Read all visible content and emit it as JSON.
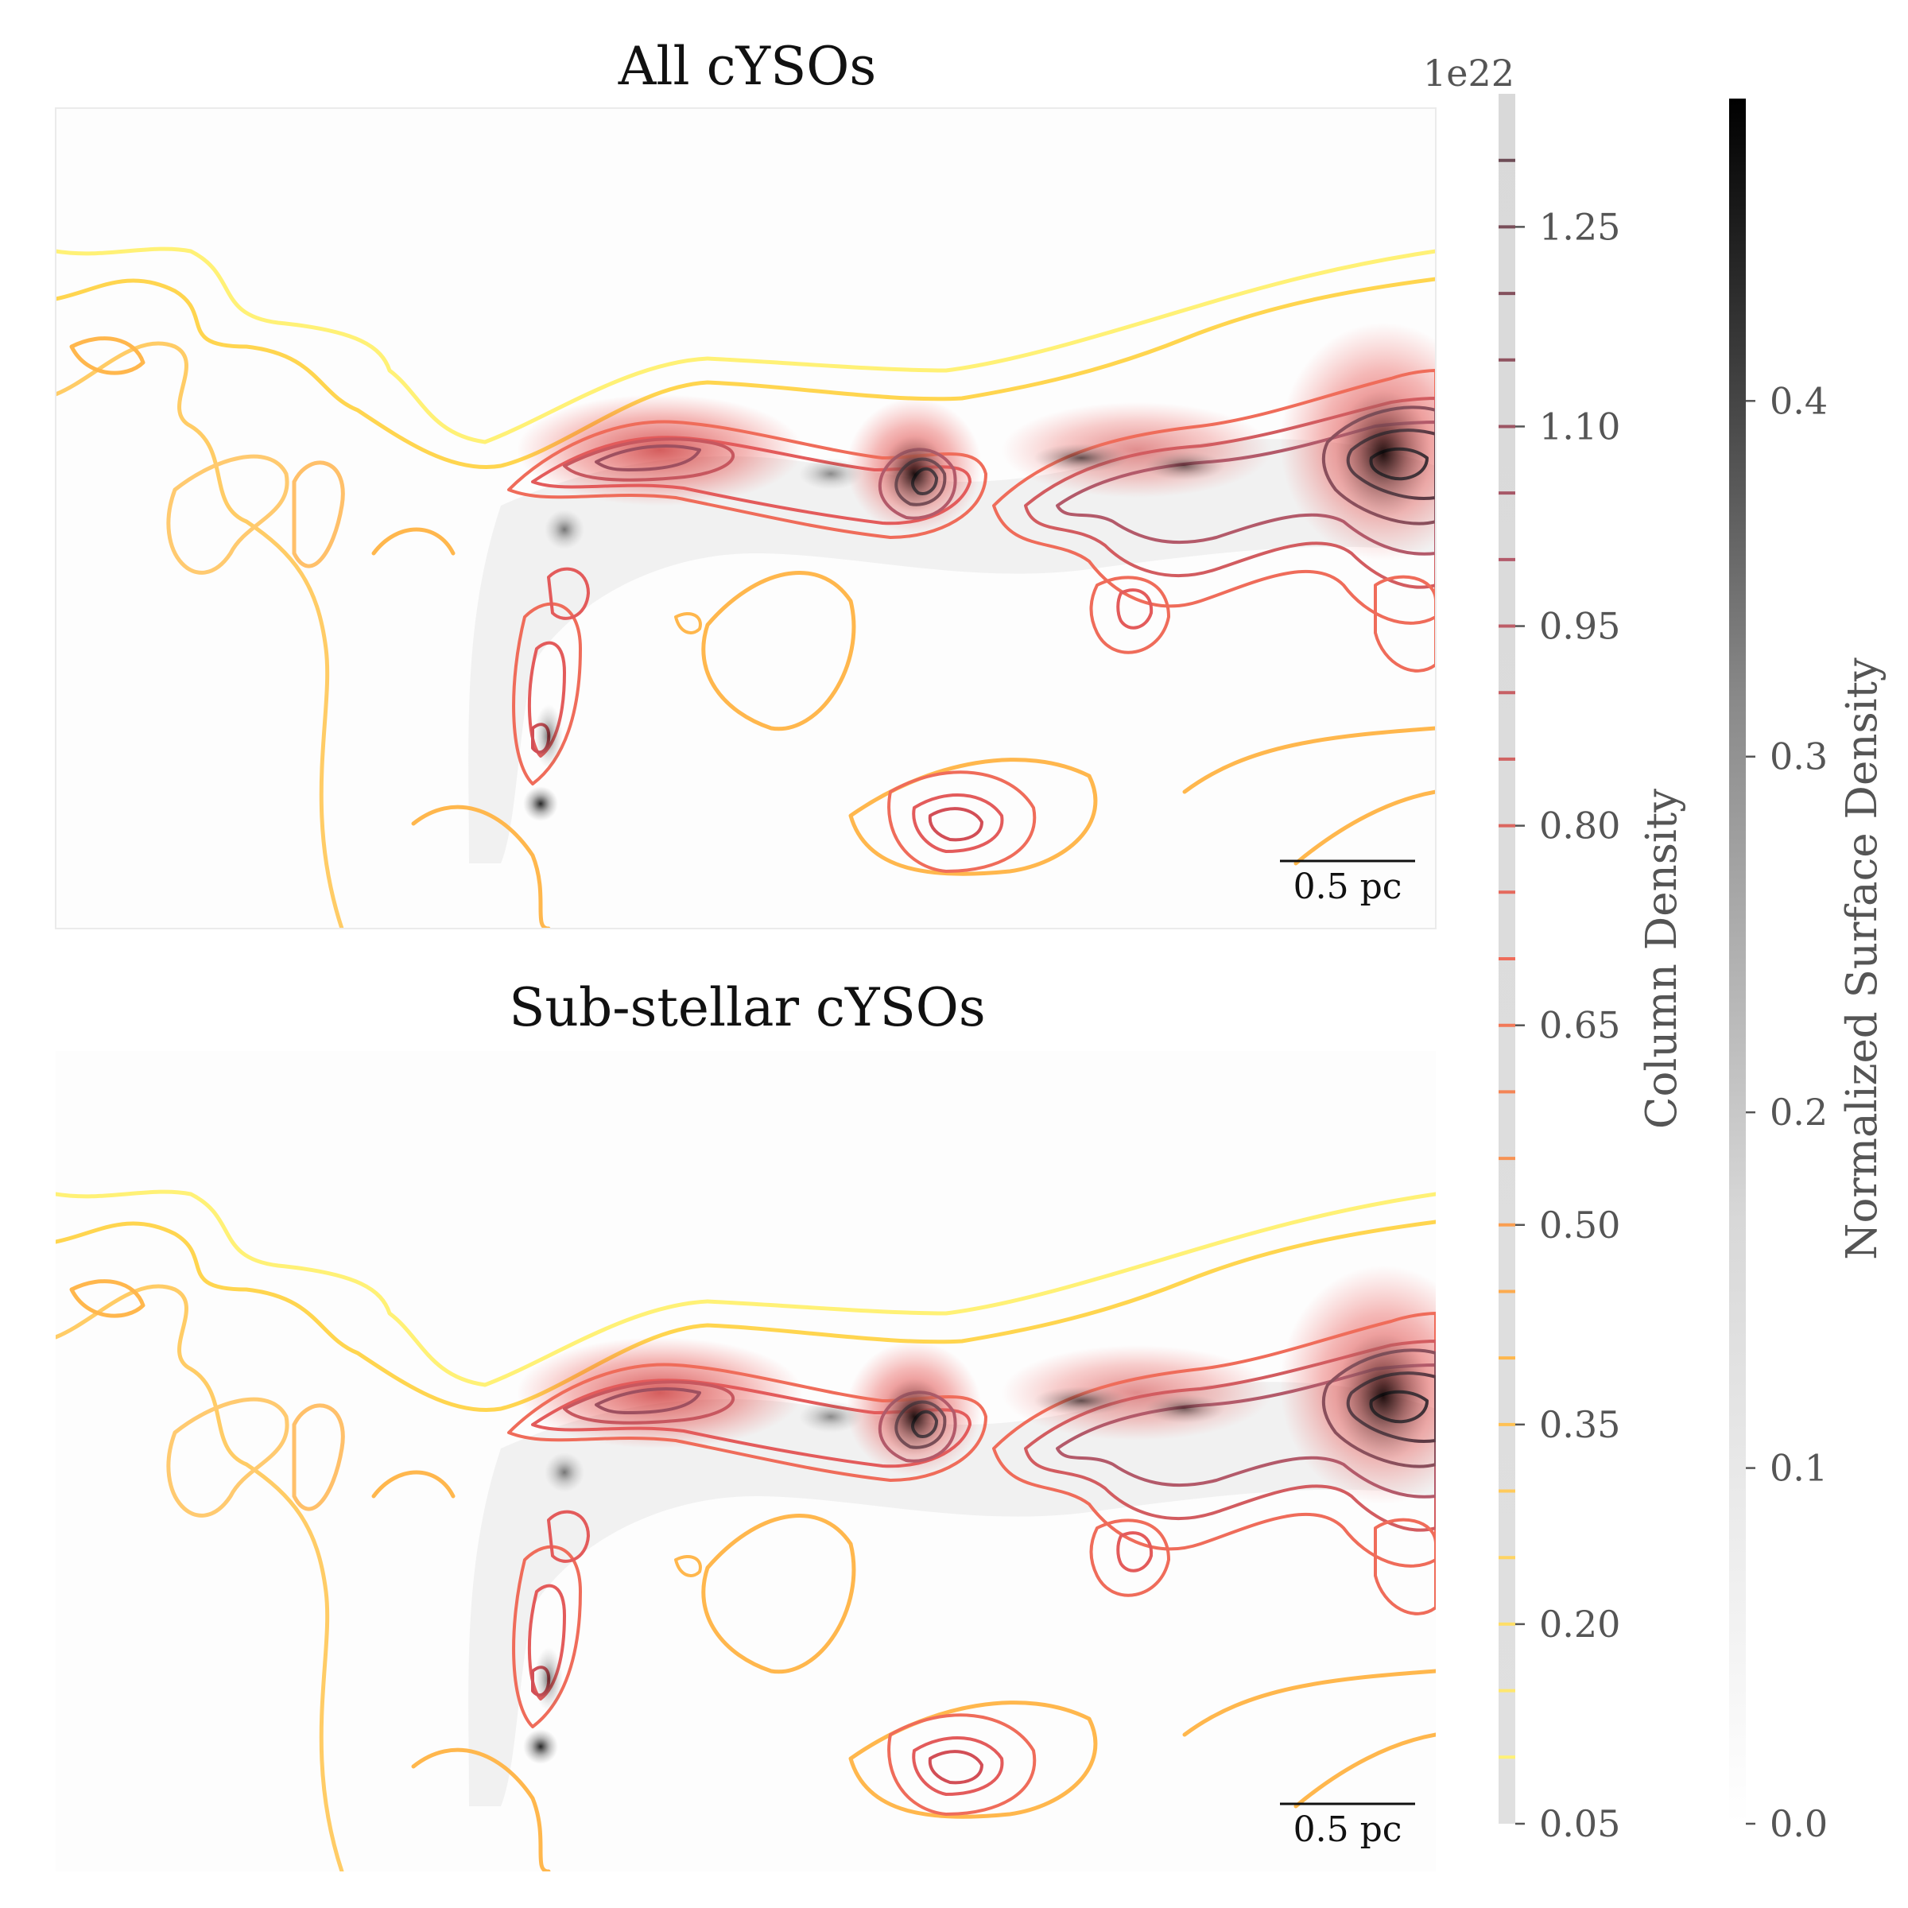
{
  "chart_data": [
    {
      "type": "heatmap",
      "title": "All cYSOs",
      "overlay": "column density contours (yellow to red)",
      "scale_bar_label": "0.5 pc",
      "grid": false
    },
    {
      "type": "heatmap",
      "title": "Sub-stellar cYSOs",
      "overlay": "column density contours (yellow to red)",
      "scale_bar_label": "0.5 pc",
      "grid": false
    }
  ],
  "colorbars": {
    "column_density": {
      "label": "Column Density",
      "offset_text": "1e22",
      "range": [
        0.05,
        1.35
      ],
      "tick_values": [
        0.05,
        0.2,
        0.35,
        0.5,
        0.65,
        0.8,
        0.95,
        1.1,
        1.25
      ],
      "tick_labels": [
        "0.05",
        "0.20",
        "0.35",
        "0.50",
        "0.65",
        "0.80",
        "0.95",
        "1.10",
        "1.25"
      ],
      "contour_levels": [
        0.1,
        0.15,
        0.2,
        0.25,
        0.3,
        0.35,
        0.4,
        0.45,
        0.5,
        0.55,
        0.6,
        0.65,
        0.7,
        0.75,
        0.8,
        0.85,
        0.9,
        0.95,
        1.0,
        1.05,
        1.1,
        1.15,
        1.2,
        1.25,
        1.3
      ],
      "colors": [
        "#fff176",
        "#ffb74d",
        "#ef6c5a",
        "#b35a6a",
        "#6d4c56"
      ]
    },
    "surface_density": {
      "label": "Normalized Surface Density",
      "range": [
        0.0,
        0.485
      ],
      "tick_values": [
        0.0,
        0.1,
        0.2,
        0.3,
        0.4
      ],
      "tick_labels": [
        "0.0",
        "0.1",
        "0.2",
        "0.3",
        "0.4"
      ],
      "colors": [
        "#ffffff",
        "#000000"
      ]
    }
  }
}
